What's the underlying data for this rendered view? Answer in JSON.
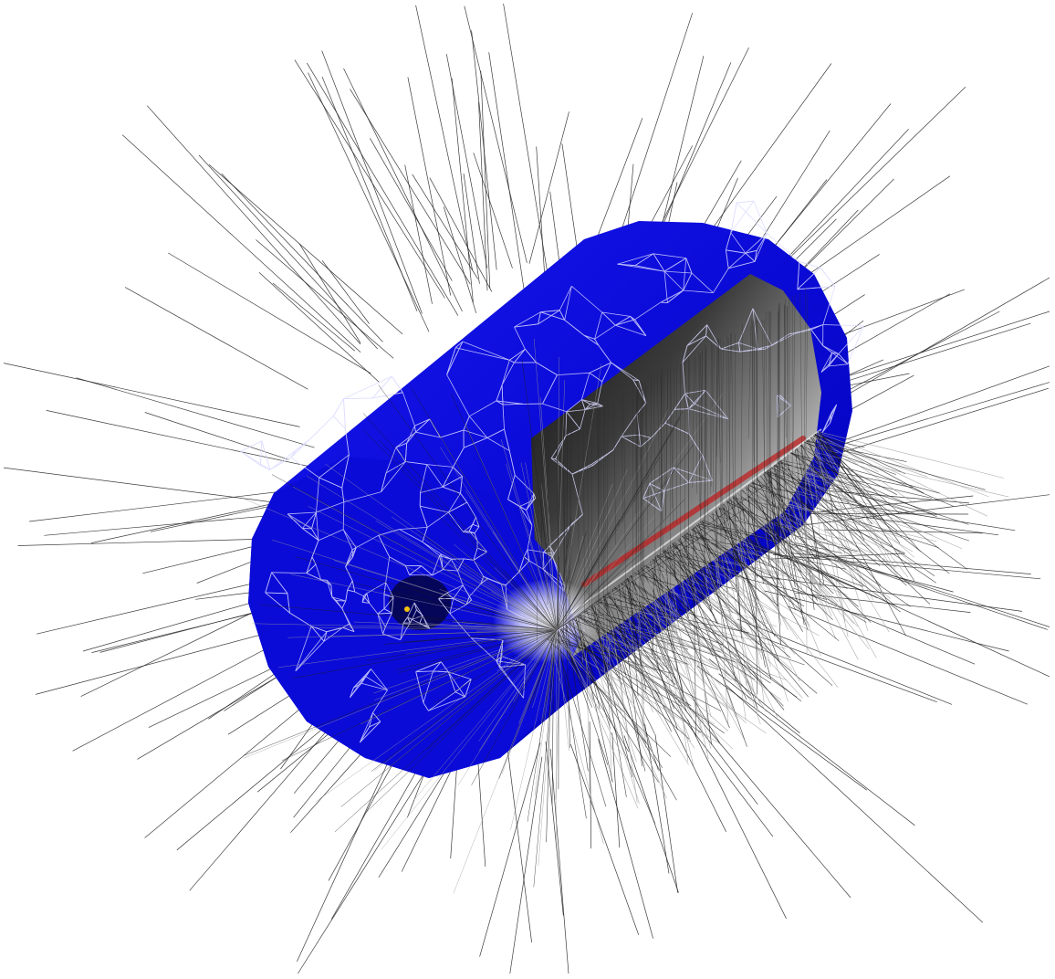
{
  "scene": {
    "background": "#ffffff",
    "body_color": "#0a0ad6",
    "body_color_dark": "#0000a8",
    "body_color_light": "#2a2aff",
    "mesh_color": "#d8d8ff",
    "field_line_color": "#1a1a1a",
    "field_line_color_light": "#9a9a9a",
    "cutaway_dark": "#101010",
    "cutaway_light": "#f2f2f2",
    "hot_spot_color": "#c02020",
    "marker_color": "#f4c20d",
    "object_shape": "cylinder-with-cutaway",
    "icons": [
      "mesh-wireframe",
      "field-line-bundle",
      "probe-marker"
    ]
  }
}
